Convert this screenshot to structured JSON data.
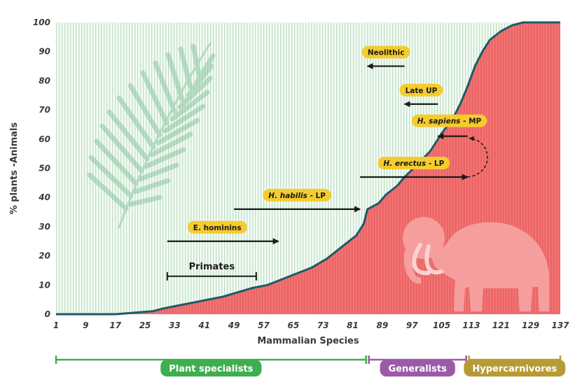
{
  "chart_data": {
    "type": "area",
    "xlabel": "Mammalian Species",
    "ylabel": "% plants -Animals",
    "xlim": [
      1,
      137
    ],
    "ylim": [
      0,
      100
    ],
    "x_ticks": [
      "1",
      "9",
      "17",
      "25",
      "33",
      "41",
      "49",
      "57",
      "65",
      "73",
      "81",
      "89",
      "97",
      "105",
      "113",
      "121",
      "129",
      "137"
    ],
    "y_ticks": [
      "0",
      "10",
      "20",
      "30",
      "40",
      "50",
      "60",
      "70",
      "80",
      "90",
      "100"
    ],
    "grid": "vertical lines",
    "series": [
      {
        "name": "",
        "color": "#ee6464",
        "points": [
          [
            1,
            0
          ],
          [
            17,
            0
          ],
          [
            22,
            0.5
          ],
          [
            27,
            1
          ],
          [
            30,
            2
          ],
          [
            34,
            3
          ],
          [
            38,
            4
          ],
          [
            42,
            5
          ],
          [
            46,
            6
          ],
          [
            50,
            7.5
          ],
          [
            54,
            9
          ],
          [
            58,
            10
          ],
          [
            62,
            12
          ],
          [
            66,
            14
          ],
          [
            70,
            16
          ],
          [
            74,
            19
          ],
          [
            78,
            23
          ],
          [
            82,
            27
          ],
          [
            84,
            31
          ],
          [
            85,
            36
          ],
          [
            88,
            38
          ],
          [
            90,
            41
          ],
          [
            93,
            44
          ],
          [
            95,
            47
          ],
          [
            99,
            52
          ],
          [
            102,
            56
          ],
          [
            105,
            62
          ],
          [
            108,
            67
          ],
          [
            110,
            72
          ],
          [
            112,
            78
          ],
          [
            114,
            85
          ],
          [
            116,
            90
          ],
          [
            118,
            94
          ],
          [
            121,
            97
          ],
          [
            124,
            99
          ],
          [
            127,
            100
          ],
          [
            137,
            100
          ]
        ]
      }
    ],
    "annotations": [
      {
        "type": "arrow",
        "label": "Neolithic",
        "from": 95,
        "to": 85,
        "y": 85
      },
      {
        "type": "arrow",
        "label": "Late UP",
        "from": 104,
        "to": 95,
        "y": 72
      },
      {
        "type": "arrow",
        "label": "MP",
        "label_italic": "H. sapiens",
        "from": 112,
        "to": 104,
        "y": 61
      },
      {
        "type": "arrow",
        "label": "LP",
        "label_italic": "H. erectus",
        "from": 83,
        "to": 112,
        "y": 47
      },
      {
        "type": "arrow",
        "label": "LP",
        "label_italic": "H. habilis",
        "from": 49,
        "to": 83,
        "y": 36
      },
      {
        "type": "arrow",
        "label": "E. hominins",
        "from": 31,
        "to": 61,
        "y": 25
      },
      {
        "type": "range",
        "label": "Primates",
        "from": 31,
        "to": 55,
        "y": 13
      },
      {
        "type": "curve",
        "from": [
          112,
          47
        ],
        "to": [
          112,
          61
        ]
      }
    ],
    "categories": [
      {
        "label": "Plant specialists",
        "from": 1,
        "to": 85,
        "color": "#3fae4f"
      },
      {
        "label": "Generalists",
        "from": 85,
        "to": 112,
        "color": "#9b5aa8"
      },
      {
        "label": "Hypercarnivores",
        "from": 112,
        "to": 137,
        "color": "#b69b35"
      }
    ]
  }
}
